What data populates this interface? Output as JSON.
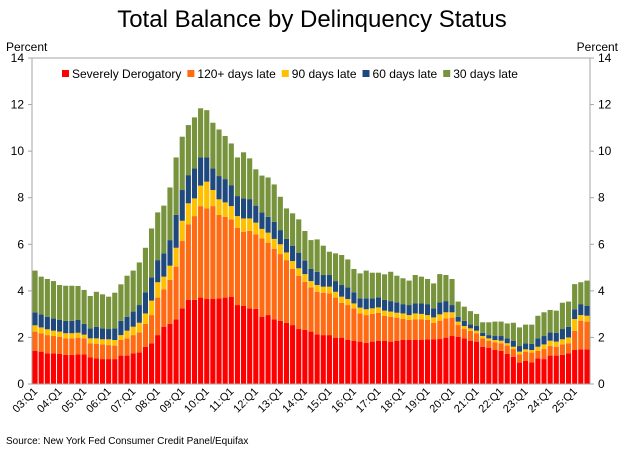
{
  "chart_data": {
    "type": "bar",
    "stacked": true,
    "title": "Total Balance by Delinquency Status",
    "ylabel_left": "Percent",
    "ylabel_right": "Percent",
    "ylim": [
      0,
      14
    ],
    "yticks": [
      0,
      2,
      4,
      6,
      8,
      10,
      12,
      14
    ],
    "grid": false,
    "legend_placement": "top",
    "source": "Source: New York Fed Consumer Credit Panel/Equifax",
    "xtick_labels": [
      "03:Q1",
      "04:Q1",
      "05:Q1",
      "06:Q1",
      "07:Q1",
      "08:Q1",
      "09:Q1",
      "10:Q1",
      "11:Q1",
      "12:Q1",
      "13:Q1",
      "14:Q1",
      "15:Q1",
      "16:Q1",
      "17:Q1",
      "18:Q1",
      "19:Q1",
      "20:Q1",
      "21:Q1",
      "22:Q1",
      "23:Q1",
      "24:Q1",
      "25:Q1"
    ],
    "x_start": "03:Q1",
    "x_end": "25:Q3",
    "series": [
      {
        "name": "Severely Derogatory",
        "color": "#FF0000",
        "values": [
          1.43,
          1.39,
          1.32,
          1.32,
          1.29,
          1.25,
          1.25,
          1.27,
          1.27,
          1.14,
          1.1,
          1.07,
          1.07,
          1.07,
          1.22,
          1.22,
          1.32,
          1.35,
          1.6,
          1.75,
          2.1,
          2.46,
          2.58,
          2.78,
          3.25,
          3.61,
          3.61,
          3.71,
          3.65,
          3.65,
          3.68,
          3.71,
          3.75,
          3.39,
          3.35,
          3.25,
          3.23,
          2.89,
          2.96,
          2.78,
          2.71,
          2.63,
          2.53,
          2.36,
          2.32,
          2.25,
          2.13,
          2.1,
          2.1,
          1.99,
          1.99,
          1.89,
          1.86,
          1.82,
          1.77,
          1.82,
          1.86,
          1.86,
          1.82,
          1.86,
          1.89,
          1.89,
          1.89,
          1.89,
          1.92,
          1.92,
          1.93,
          1.99,
          2.06,
          2.03,
          1.96,
          1.86,
          1.82,
          1.6,
          1.56,
          1.46,
          1.42,
          1.29,
          1.17,
          0.92,
          0.99,
          0.93,
          1.1,
          1.07,
          1.22,
          1.22,
          1.25,
          1.32,
          1.46,
          1.49,
          1.49
        ]
      },
      {
        "name": "120+ days late",
        "color": "#FF6A13",
        "values": [
          0.82,
          0.79,
          0.78,
          0.74,
          0.74,
          0.71,
          0.71,
          0.72,
          0.69,
          0.61,
          0.62,
          0.63,
          0.6,
          0.58,
          0.67,
          0.74,
          0.78,
          0.87,
          0.98,
          1.21,
          1.61,
          1.6,
          1.89,
          2.26,
          2.89,
          3.25,
          3.6,
          3.93,
          3.89,
          3.99,
          3.58,
          3.47,
          3.32,
          3.32,
          3.19,
          3.33,
          3.2,
          3.36,
          3.11,
          3.02,
          2.87,
          2.69,
          2.41,
          2.28,
          2.07,
          1.9,
          1.83,
          1.82,
          1.79,
          1.72,
          1.5,
          1.5,
          1.39,
          1.21,
          1.19,
          1.19,
          1.2,
          1.06,
          1.07,
          0.99,
          0.9,
          0.86,
          0.89,
          0.89,
          0.83,
          0.71,
          0.79,
          0.83,
          0.79,
          0.5,
          0.4,
          0.42,
          0.36,
          0.36,
          0.3,
          0.33,
          0.33,
          0.36,
          0.33,
          0.35,
          0.4,
          0.42,
          0.32,
          0.43,
          0.41,
          0.38,
          0.45,
          0.43,
          0.82,
          1.23,
          1.19
        ]
      },
      {
        "name": "90 days late",
        "color": "#FFC000",
        "values": [
          0.27,
          0.25,
          0.25,
          0.23,
          0.22,
          0.22,
          0.22,
          0.21,
          0.16,
          0.21,
          0.24,
          0.22,
          0.25,
          0.24,
          0.21,
          0.33,
          0.36,
          0.41,
          0.45,
          0.62,
          0.66,
          0.55,
          0.61,
          0.81,
          0.87,
          0.9,
          0.76,
          0.88,
          1.15,
          0.69,
          0.67,
          0.62,
          0.57,
          0.5,
          0.57,
          0.53,
          0.5,
          0.41,
          0.43,
          0.43,
          0.42,
          0.33,
          0.34,
          0.33,
          0.33,
          0.27,
          0.29,
          0.26,
          0.29,
          0.25,
          0.26,
          0.26,
          0.21,
          0.25,
          0.25,
          0.24,
          0.23,
          0.23,
          0.22,
          0.21,
          0.24,
          0.21,
          0.25,
          0.23,
          0.21,
          0.23,
          0.27,
          0.26,
          0.23,
          0.15,
          0.13,
          0.11,
          0.11,
          0.1,
          0.1,
          0.1,
          0.11,
          0.1,
          0.1,
          0.12,
          0.1,
          0.11,
          0.18,
          0.2,
          0.23,
          0.22,
          0.22,
          0.25,
          0.51,
          0.24,
          0.25
        ]
      },
      {
        "name": "60 days late",
        "color": "#1F497D",
        "values": [
          0.56,
          0.56,
          0.54,
          0.53,
          0.5,
          0.53,
          0.53,
          0.55,
          0.46,
          0.43,
          0.5,
          0.47,
          0.44,
          0.5,
          0.61,
          0.6,
          0.65,
          0.76,
          0.91,
          1.0,
          0.95,
          1.0,
          1.1,
          1.41,
          1.32,
          1.21,
          1.29,
          1.21,
          1.04,
          0.93,
          1.0,
          1.0,
          0.9,
          0.86,
          0.86,
          0.83,
          0.73,
          0.71,
          0.68,
          0.73,
          0.61,
          0.58,
          0.66,
          0.67,
          0.58,
          0.52,
          0.57,
          0.5,
          0.5,
          0.46,
          0.5,
          0.5,
          0.48,
          0.4,
          0.47,
          0.43,
          0.43,
          0.46,
          0.45,
          0.45,
          0.4,
          0.43,
          0.43,
          0.45,
          0.47,
          0.39,
          0.52,
          0.48,
          0.31,
          0.21,
          0.22,
          0.17,
          0.2,
          0.14,
          0.14,
          0.17,
          0.2,
          0.21,
          0.26,
          0.24,
          0.26,
          0.26,
          0.36,
          0.36,
          0.36,
          0.38,
          0.44,
          0.46,
          0.42,
          0.47,
          0.42
        ]
      },
      {
        "name": "30 days late",
        "color": "#77933C",
        "values": [
          1.79,
          1.62,
          1.62,
          1.6,
          1.5,
          1.51,
          1.51,
          1.46,
          1.46,
          1.39,
          1.5,
          1.46,
          1.39,
          1.53,
          1.57,
          1.76,
          1.76,
          1.83,
          1.91,
          2.1,
          2.05,
          2.05,
          2.26,
          2.47,
          2.29,
          2.15,
          2.19,
          2.11,
          2.03,
          1.96,
          2.0,
          1.85,
          1.79,
          1.66,
          1.98,
          1.75,
          1.56,
          1.58,
          1.69,
          1.61,
          1.43,
          1.31,
          1.39,
          1.43,
          1.27,
          1.24,
          1.39,
          1.26,
          1.0,
          1.19,
          1.29,
          1.2,
          1.0,
          1.07,
          1.19,
          1.1,
          1.06,
          1.1,
          1.26,
          1.14,
          1.11,
          1.05,
          1.22,
          1.15,
          1.08,
          1.07,
          1.21,
          1.12,
          1.12,
          0.65,
          0.61,
          0.57,
          0.52,
          0.45,
          0.55,
          0.62,
          0.62,
          0.64,
          0.77,
          0.8,
          0.8,
          0.83,
          0.97,
          1.02,
          0.96,
          0.95,
          1.13,
          1.08,
          1.08,
          0.94,
          1.09
        ]
      }
    ]
  }
}
